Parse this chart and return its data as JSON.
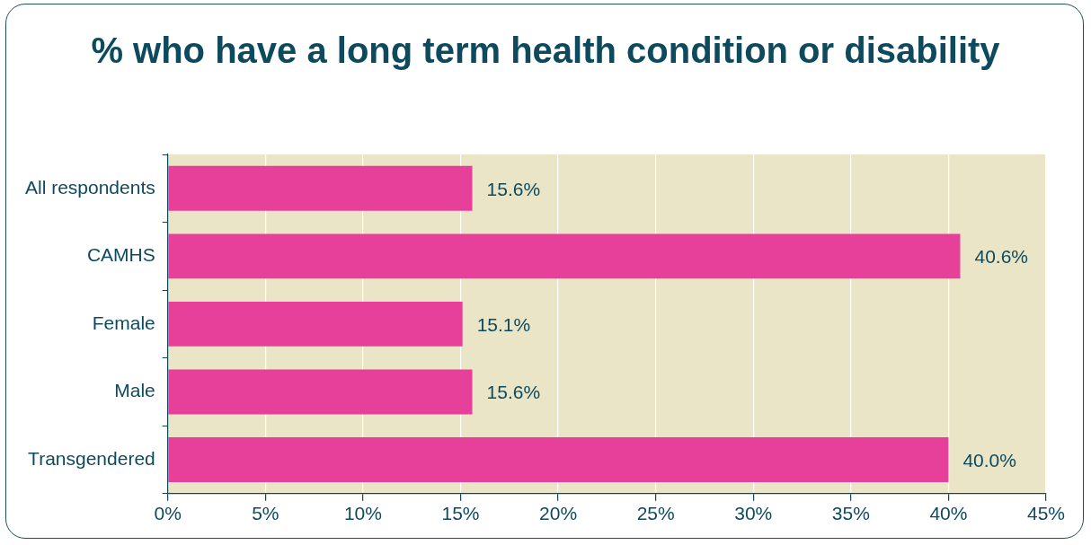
{
  "chart_data": {
    "type": "bar",
    "orientation": "horizontal",
    "title": "% who have a long term health condition or disability",
    "categories": [
      "All respondents",
      "CAMHS",
      "Female",
      "Male",
      "Transgendered"
    ],
    "values": [
      15.6,
      40.6,
      15.1,
      15.6,
      40.0
    ],
    "value_labels": [
      "15.6%",
      "40.6%",
      "15.1%",
      "15.6%",
      "40.0%"
    ],
    "color": "#e6409a",
    "xlim": [
      0,
      45
    ],
    "xticks": [
      {
        "value": 0,
        "label": "0%"
      },
      {
        "value": 5,
        "label": "5%"
      },
      {
        "value": 10,
        "label": "10%"
      },
      {
        "value": 15,
        "label": "15%"
      },
      {
        "value": 20,
        "label": "20%"
      },
      {
        "value": 25,
        "label": "25%"
      },
      {
        "value": 30,
        "label": "30%"
      },
      {
        "value": 35,
        "label": "35%"
      },
      {
        "value": 40,
        "label": "40%"
      },
      {
        "value": 45,
        "label": "45%"
      }
    ],
    "grid": "x",
    "legend": false
  }
}
